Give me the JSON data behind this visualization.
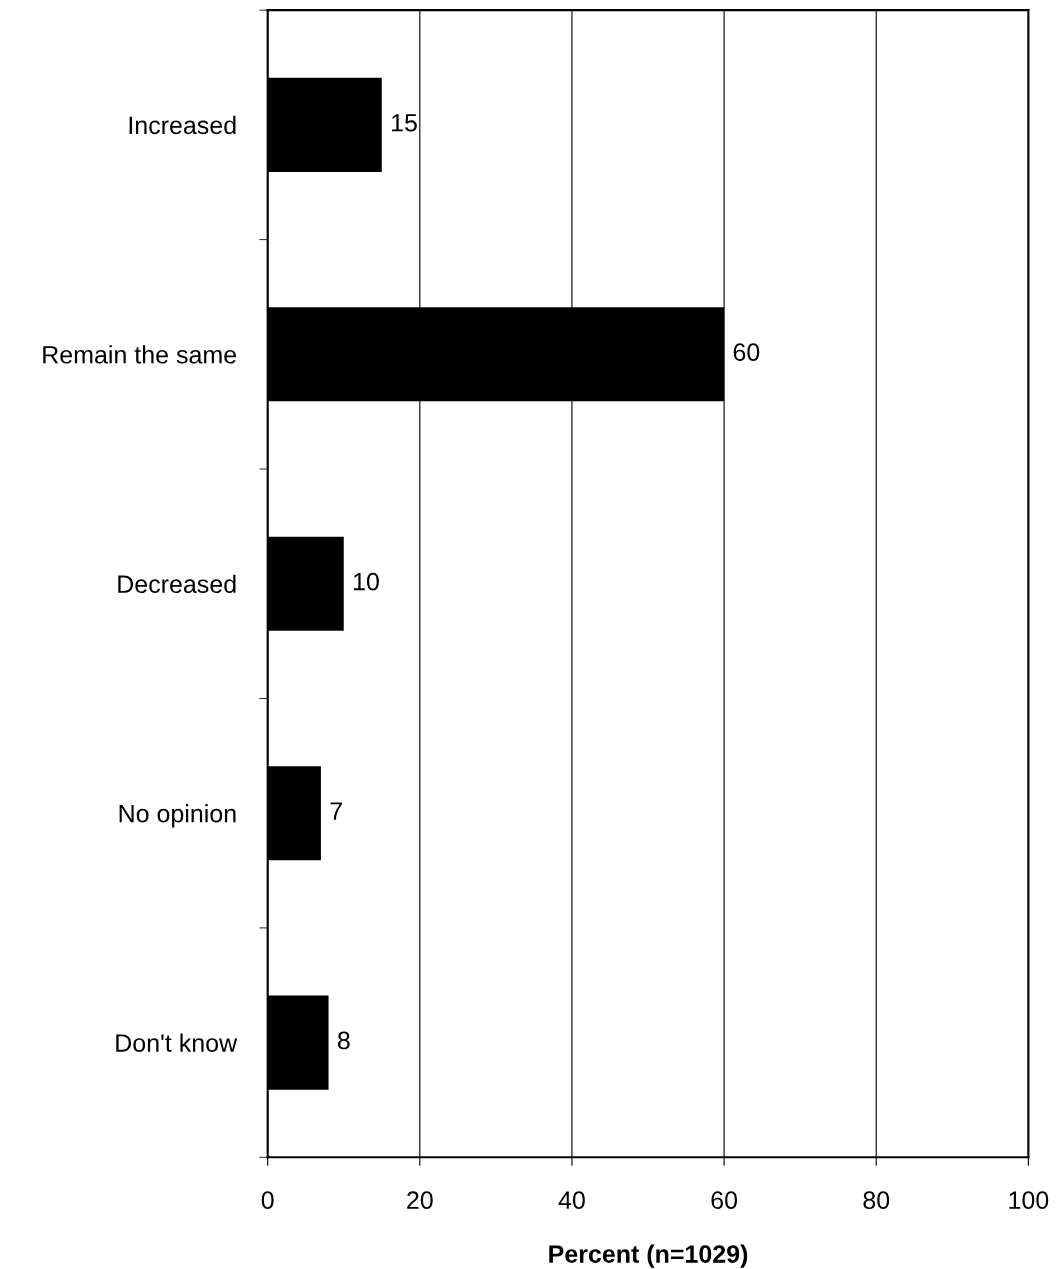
{
  "chart_data": {
    "type": "bar",
    "orientation": "horizontal",
    "xlabel": "Percent (n=1029)",
    "categories": [
      "Increased",
      "Remain the same",
      "Decreased",
      "No opinion",
      "Don't know"
    ],
    "values": [
      15,
      60,
      10,
      7,
      8
    ],
    "color": "#000000",
    "data_labels": true,
    "xlim": [
      0,
      100
    ],
    "xticks": [
      0,
      20,
      40,
      60,
      80,
      100
    ],
    "grid": "x"
  }
}
